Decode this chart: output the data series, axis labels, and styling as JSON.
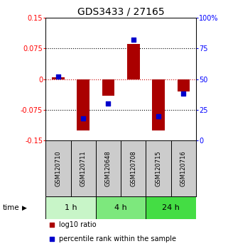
{
  "title": "GDS3433 / 27165",
  "samples": [
    "GSM120710",
    "GSM120711",
    "GSM120648",
    "GSM120708",
    "GSM120715",
    "GSM120716"
  ],
  "log10_ratio": [
    0.004,
    -0.125,
    -0.04,
    0.085,
    -0.125,
    -0.03
  ],
  "percentile_rank": [
    52,
    18,
    30,
    82,
    20,
    38
  ],
  "ylim_left": [
    -0.15,
    0.15
  ],
  "ylim_right": [
    0,
    100
  ],
  "yticks_left": [
    -0.15,
    -0.075,
    0,
    0.075,
    0.15
  ],
  "yticks_right": [
    0,
    25,
    50,
    75,
    100
  ],
  "ytick_labels_left": [
    "-0.15",
    "-0.075",
    "0",
    "0.075",
    "0.15"
  ],
  "ytick_labels_right": [
    "0",
    "25",
    "50",
    "75",
    "100%"
  ],
  "time_groups": [
    {
      "label": "1 h",
      "cols": [
        0,
        1
      ],
      "color": "#c8f5c8"
    },
    {
      "label": "4 h",
      "cols": [
        2,
        3
      ],
      "color": "#7de87d"
    },
    {
      "label": "24 h",
      "cols": [
        4,
        5
      ],
      "color": "#44dd44"
    }
  ],
  "bar_color": "#aa0000",
  "square_color": "#0000cc",
  "bar_width": 0.5,
  "square_size": 18,
  "bg_color": "#ffffff",
  "plot_bg": "#ffffff",
  "grid_color": "#000000",
  "zero_line_color": "#cc0000",
  "sample_box_color": "#cccccc",
  "legend_red_label": "log10 ratio",
  "legend_blue_label": "percentile rank within the sample",
  "time_label": "time",
  "title_fontsize": 10,
  "tick_fontsize": 7,
  "sample_fontsize": 6,
  "time_fontsize": 8,
  "legend_fontsize": 7
}
